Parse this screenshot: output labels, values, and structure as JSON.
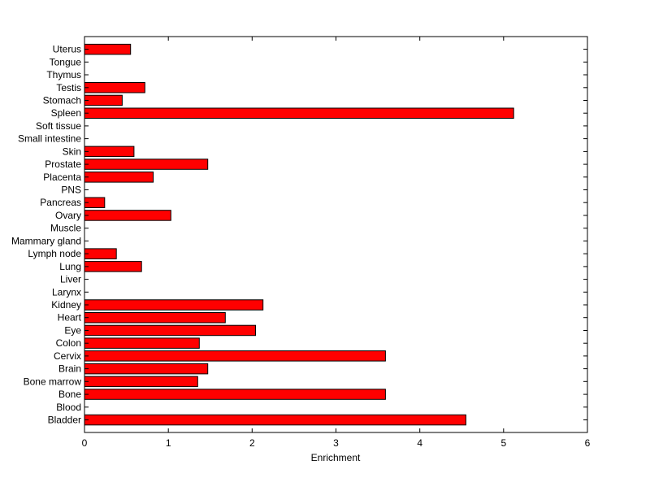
{
  "chart_data": {
    "type": "bar",
    "orientation": "horizontal",
    "title": "",
    "xlabel": "Enrichment",
    "ylabel": "",
    "xlim": [
      0,
      6
    ],
    "xticks": [
      0,
      1,
      2,
      3,
      4,
      5,
      6
    ],
    "grid": false,
    "legend": "none",
    "bar_color": "#ff0000",
    "bar_edge_color": "#000000",
    "categories": [
      "Bladder",
      "Blood",
      "Bone",
      "Bone marrow",
      "Brain",
      "Cervix",
      "Colon",
      "Eye",
      "Heart",
      "Kidney",
      "Larynx",
      "Liver",
      "Lung",
      "Lymph node",
      "Mammary gland",
      "Muscle",
      "Ovary",
      "Pancreas",
      "PNS",
      "Placenta",
      "Prostate",
      "Skin",
      "Small intestine",
      "Soft tissue",
      "Spleen",
      "Stomach",
      "Testis",
      "Thymus",
      "Tongue",
      "Uterus"
    ],
    "values": [
      4.55,
      0,
      3.59,
      1.35,
      1.47,
      3.59,
      1.37,
      2.04,
      1.68,
      2.13,
      0,
      0,
      0.68,
      0.38,
      0,
      0,
      1.03,
      0.24,
      0,
      0.82,
      1.47,
      0.59,
      0,
      0,
      5.12,
      0.45,
      0.72,
      0,
      0,
      0.55
    ]
  }
}
